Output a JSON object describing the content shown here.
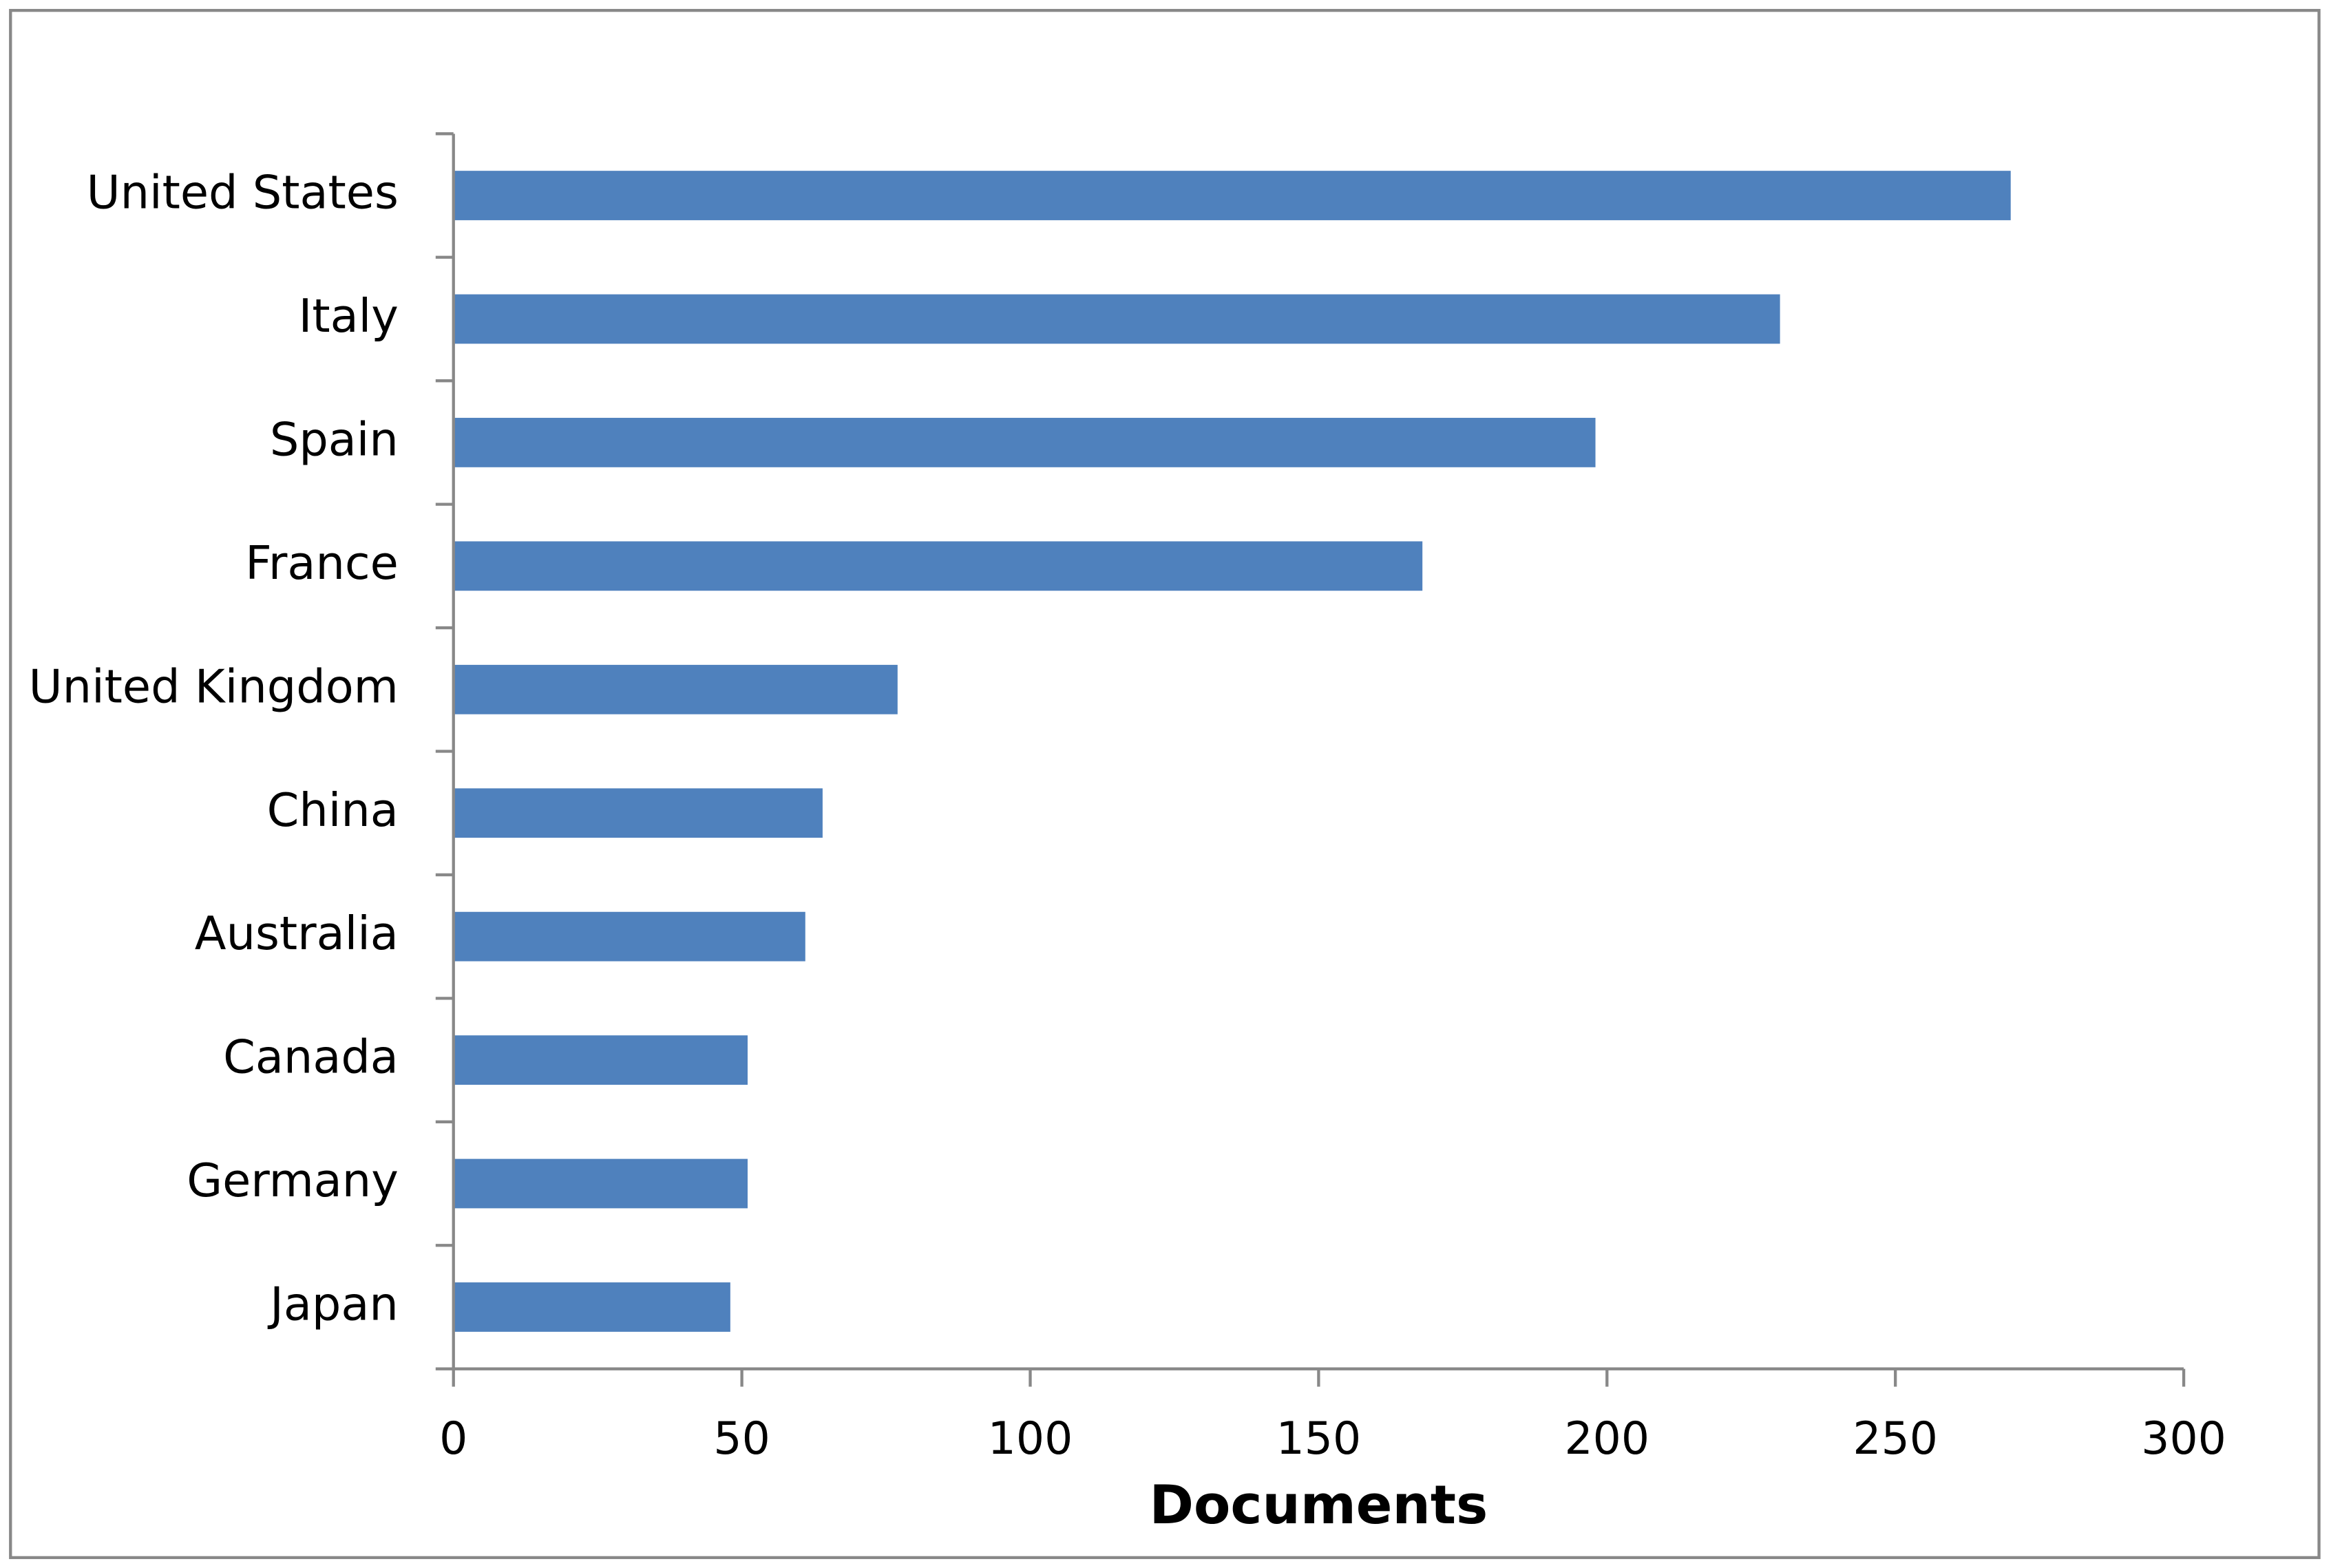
{
  "chart_data": {
    "type": "hbar",
    "categories": [
      "United States",
      "Italy",
      "Spain",
      "France",
      "United Kingdom",
      "China",
      "Australia",
      "Canada",
      "Germany",
      "Japan"
    ],
    "values": [
      270,
      230,
      198,
      168,
      77,
      64,
      61,
      51,
      51,
      48
    ],
    "color": "#4f81bd",
    "xlabel": "Documents",
    "xlim": [
      0,
      300
    ],
    "xticks": [
      0,
      50,
      100,
      150,
      200,
      250,
      300
    ],
    "grid": false
  }
}
